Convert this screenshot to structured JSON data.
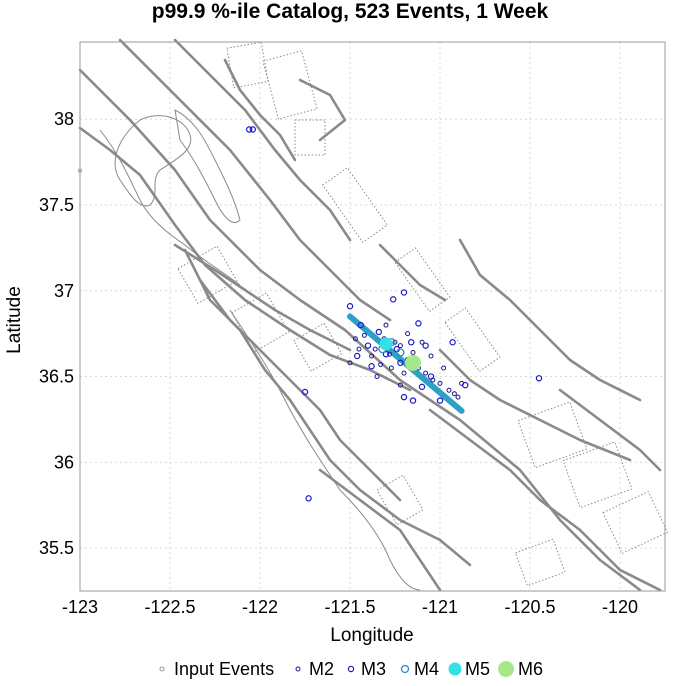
{
  "chart_data": {
    "type": "scatter",
    "title": "p99.9 %-ile Catalog, 523 Events, 1 Week",
    "xlabel": "Longitude",
    "ylabel": "Latitude",
    "xlim": [
      -123.0,
      -119.75
    ],
    "ylim": [
      35.25,
      38.45
    ],
    "xticks": [
      -123,
      -122.5,
      -122,
      -121.5,
      -121,
      -120.5,
      -120
    ],
    "xtick_labels": [
      "-123",
      "-122.5",
      "-122",
      "-121.5",
      "-121",
      "-120.5",
      "-120"
    ],
    "yticks": [
      35.5,
      36,
      36.5,
      37,
      37.5,
      38
    ],
    "ytick_labels": [
      "35.5",
      "36",
      "36.5",
      "37",
      "37.5",
      "38"
    ],
    "grid": true,
    "legend_position": "bottom",
    "series": [
      {
        "name": "Input Events",
        "color": "#999999",
        "points": [
          [
            -123.0,
            37.7
          ]
        ]
      },
      {
        "name": "M2",
        "color": "#1a1a8c",
        "points": [
          [
            -121.36,
            36.66
          ],
          [
            -121.42,
            36.74
          ],
          [
            -121.31,
            36.72
          ],
          [
            -121.28,
            36.63
          ],
          [
            -121.22,
            36.68
          ],
          [
            -121.18,
            36.6
          ],
          [
            -121.12,
            36.55
          ],
          [
            -121.08,
            36.52
          ],
          [
            -121.04,
            36.48
          ],
          [
            -121.0,
            36.46
          ],
          [
            -120.95,
            36.42
          ],
          [
            -120.92,
            36.4
          ],
          [
            -120.9,
            36.38
          ],
          [
            -121.38,
            36.62
          ],
          [
            -121.25,
            36.7
          ],
          [
            -121.15,
            36.64
          ],
          [
            -121.2,
            36.52
          ],
          [
            -121.33,
            36.57
          ],
          [
            -121.45,
            36.66
          ],
          [
            -121.47,
            36.72
          ],
          [
            -121.1,
            36.7
          ],
          [
            -121.05,
            36.62
          ],
          [
            -121.3,
            36.8
          ],
          [
            -121.35,
            36.5
          ],
          [
            -121.22,
            36.45
          ],
          [
            -120.98,
            36.55
          ],
          [
            -120.88,
            36.46
          ],
          [
            -121.5,
            36.58
          ],
          [
            -121.18,
            36.75
          ],
          [
            -121.27,
            36.55
          ]
        ]
      },
      {
        "name": "M3",
        "color": "#1a1acc",
        "points": [
          [
            -122.06,
            37.94
          ],
          [
            -122.04,
            37.94
          ],
          [
            -121.3,
            36.7
          ],
          [
            -121.24,
            36.66
          ],
          [
            -121.4,
            36.68
          ],
          [
            -121.13,
            36.58
          ],
          [
            -121.05,
            36.5
          ],
          [
            -121.2,
            36.99
          ],
          [
            -121.26,
            36.95
          ],
          [
            -121.5,
            36.91
          ],
          [
            -120.45,
            36.49
          ],
          [
            -120.86,
            36.45
          ],
          [
            -121.12,
            36.81
          ],
          [
            -121.75,
            36.41
          ],
          [
            -121.73,
            35.79
          ],
          [
            -121.2,
            36.38
          ],
          [
            -121.15,
            36.36
          ],
          [
            -121.0,
            36.36
          ],
          [
            -121.38,
            36.56
          ],
          [
            -121.08,
            36.68
          ],
          [
            -121.44,
            36.8
          ],
          [
            -121.3,
            36.63
          ],
          [
            -121.22,
            36.58
          ],
          [
            -121.34,
            36.76
          ],
          [
            -121.1,
            36.44
          ],
          [
            -121.16,
            36.7
          ],
          [
            -120.93,
            36.7
          ],
          [
            -121.46,
            36.62
          ]
        ]
      },
      {
        "name": "M4",
        "color": "#2a8ac8",
        "points": [
          [
            -121.22,
            36.64
          ],
          [
            -121.27,
            36.7
          ],
          [
            -121.32,
            36.66
          ]
        ]
      },
      {
        "name": "M5",
        "color": "#33e0e8",
        "points": [
          [
            -121.3,
            36.69
          ]
        ]
      },
      {
        "name": "M6",
        "color": "#a6e88a",
        "points": [
          [
            -121.15,
            36.58
          ]
        ]
      }
    ],
    "aftershock_zone": {
      "start": [
        -121.5,
        36.85
      ],
      "end": [
        -120.88,
        36.3
      ],
      "color": "#2da0c8"
    }
  },
  "legend": {
    "items": [
      {
        "label": "Input Events",
        "color": "#999999",
        "style": "circle-small"
      },
      {
        "label": "M2",
        "color": "#1a1a8c",
        "style": "circle-small"
      },
      {
        "label": "M3",
        "color": "#1a1acc",
        "style": "circle-medium"
      },
      {
        "label": "M4",
        "color": "#2a8ac8",
        "style": "circle-large"
      },
      {
        "label": "M5",
        "color": "#33e0e8",
        "style": "filled"
      },
      {
        "label": "M6",
        "color": "#a6e88a",
        "style": "filled-large"
      }
    ]
  }
}
